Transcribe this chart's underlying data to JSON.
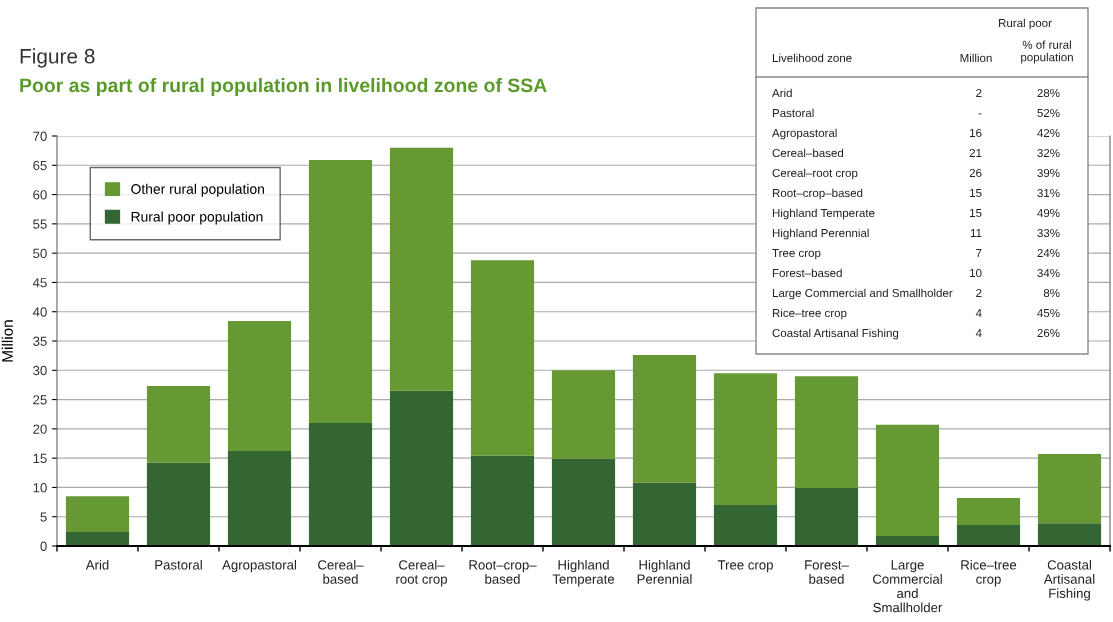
{
  "chart_data": {
    "type": "bar",
    "stacked": true,
    "title": "Figure 8",
    "subtitle": "Poor as part of rural population in livelihood zone of SSA",
    "ylabel": "Million",
    "categories": [
      "Arid",
      "Pastoral",
      "Agropastoral",
      "Cereal–\nbased",
      "Cereal–\nroot crop",
      "Root–crop–\nbased",
      "Highland\nTemperate",
      "Highland\nPerennial",
      "Tree crop",
      "Forest–\nbased",
      "Large\nCommercial\nand\nSmallholder",
      "Rice–tree\ncrop",
      "Coastal\nArtisanal\nFishing"
    ],
    "series": [
      {
        "name": "Rural poor population",
        "color": "#336633",
        "values": [
          2.4,
          14.2,
          16.2,
          21.0,
          26.5,
          15.4,
          14.9,
          10.8,
          7.0,
          9.9,
          1.7,
          3.6,
          3.9
        ]
      },
      {
        "name": "Other rural population",
        "color": "#669933",
        "values": [
          6.1,
          13.1,
          22.2,
          44.9,
          41.5,
          33.4,
          15.1,
          21.8,
          22.5,
          19.1,
          19.0,
          4.6,
          11.8
        ]
      }
    ],
    "ylim": [
      0,
      70
    ],
    "yticks": [
      0,
      5,
      10,
      15,
      20,
      25,
      30,
      35,
      40,
      45,
      50,
      55,
      60,
      65,
      70
    ],
    "grid": "y",
    "legend": "top left",
    "annotations": [
      "Rural poor",
      "Livelihood zone",
      "Million",
      "% of rural\npopulation",
      "Arid",
      "2",
      "28%",
      "Pastoral",
      "-",
      "52%",
      "Agropastoral",
      "16",
      "42%",
      "Cereal–based",
      "21",
      "32%",
      "Cereal–root crop",
      "26",
      "39%",
      "Root–crop–based",
      "15",
      "31%",
      "Highland Temperate",
      "15",
      "49%",
      "Highland Perennial",
      "11",
      "33%",
      "Tree crop",
      "7",
      "24%",
      "Forest–based",
      "10",
      "34%",
      "Large Commercial and Smallholder",
      "2",
      "8%",
      "Rice–tree crop",
      "4",
      "45%",
      "Coastal Artisanal Fishing",
      "4",
      "26%"
    ]
  }
}
